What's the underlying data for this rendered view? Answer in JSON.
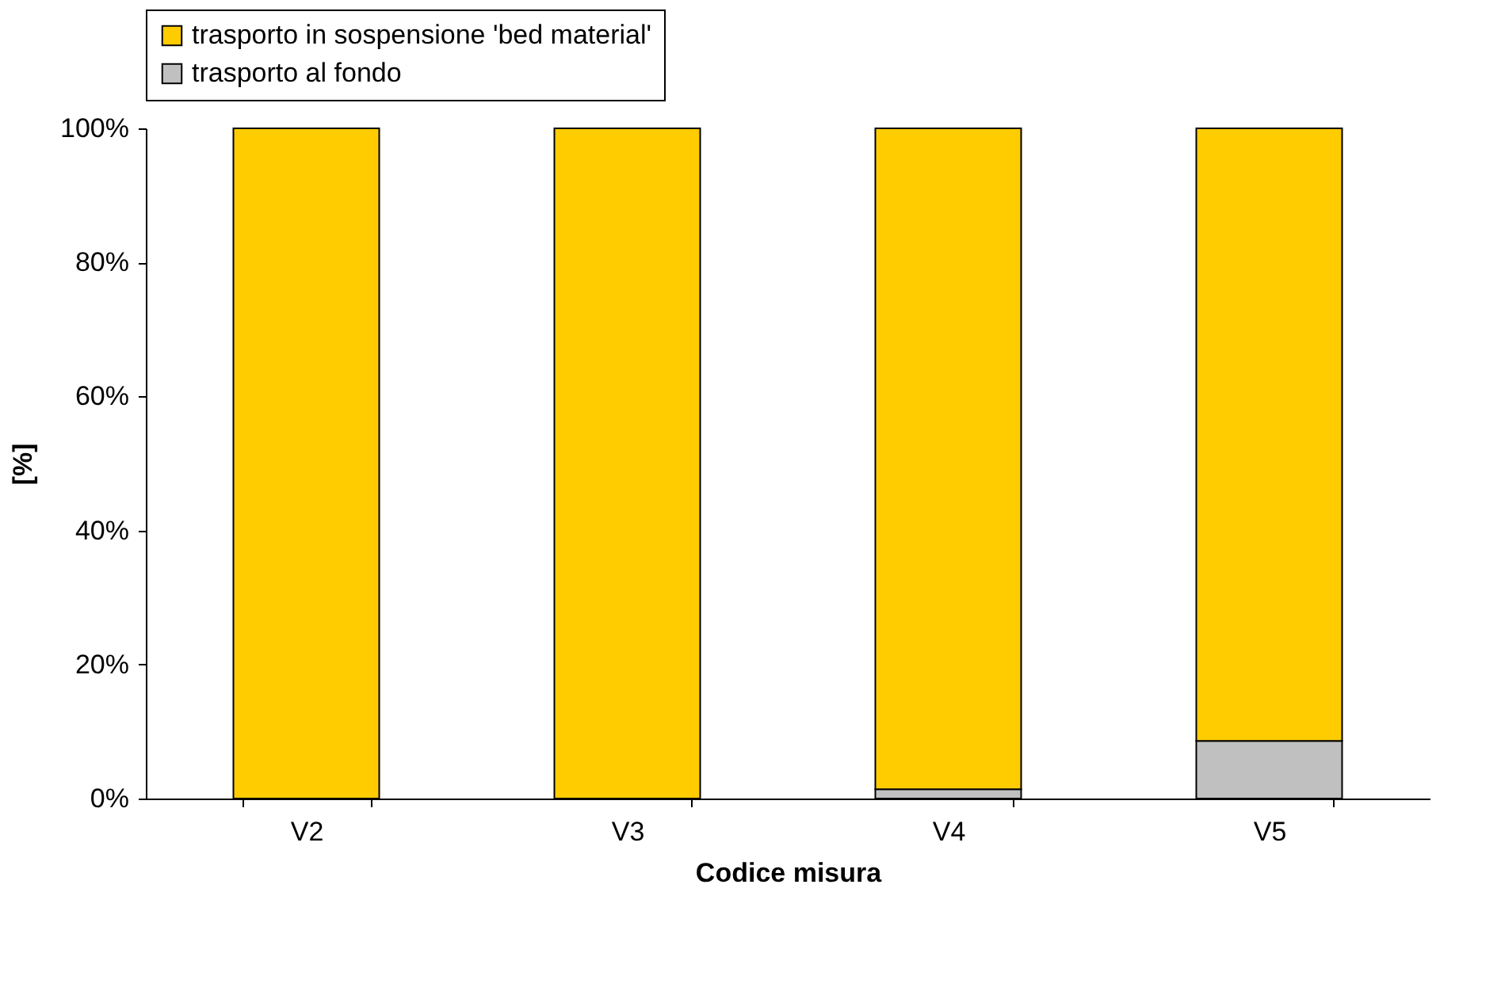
{
  "chart_data": {
    "type": "bar",
    "stacked": true,
    "xlabel": "Codice misura",
    "ylabel": "[%]",
    "categories": [
      "V2",
      "V3",
      "V4",
      "V5"
    ],
    "series": [
      {
        "name": "trasporto al fondo",
        "color": "#c0c0c0",
        "values": [
          0,
          0,
          1.4,
          8.6
        ]
      },
      {
        "name": "trasporto in sospensione 'bed material'",
        "color": "#ffcc00",
        "values": [
          100,
          100,
          98.6,
          91.4
        ]
      }
    ],
    "ylim": [
      0,
      100
    ],
    "yticks": [
      {
        "value": 0,
        "label": "0%"
      },
      {
        "value": 20,
        "label": "20%"
      },
      {
        "value": 40,
        "label": "40%"
      },
      {
        "value": 60,
        "label": "60%"
      },
      {
        "value": 80,
        "label": "80%"
      },
      {
        "value": 100,
        "label": "100%"
      }
    ],
    "grid": false,
    "legend": "top"
  }
}
